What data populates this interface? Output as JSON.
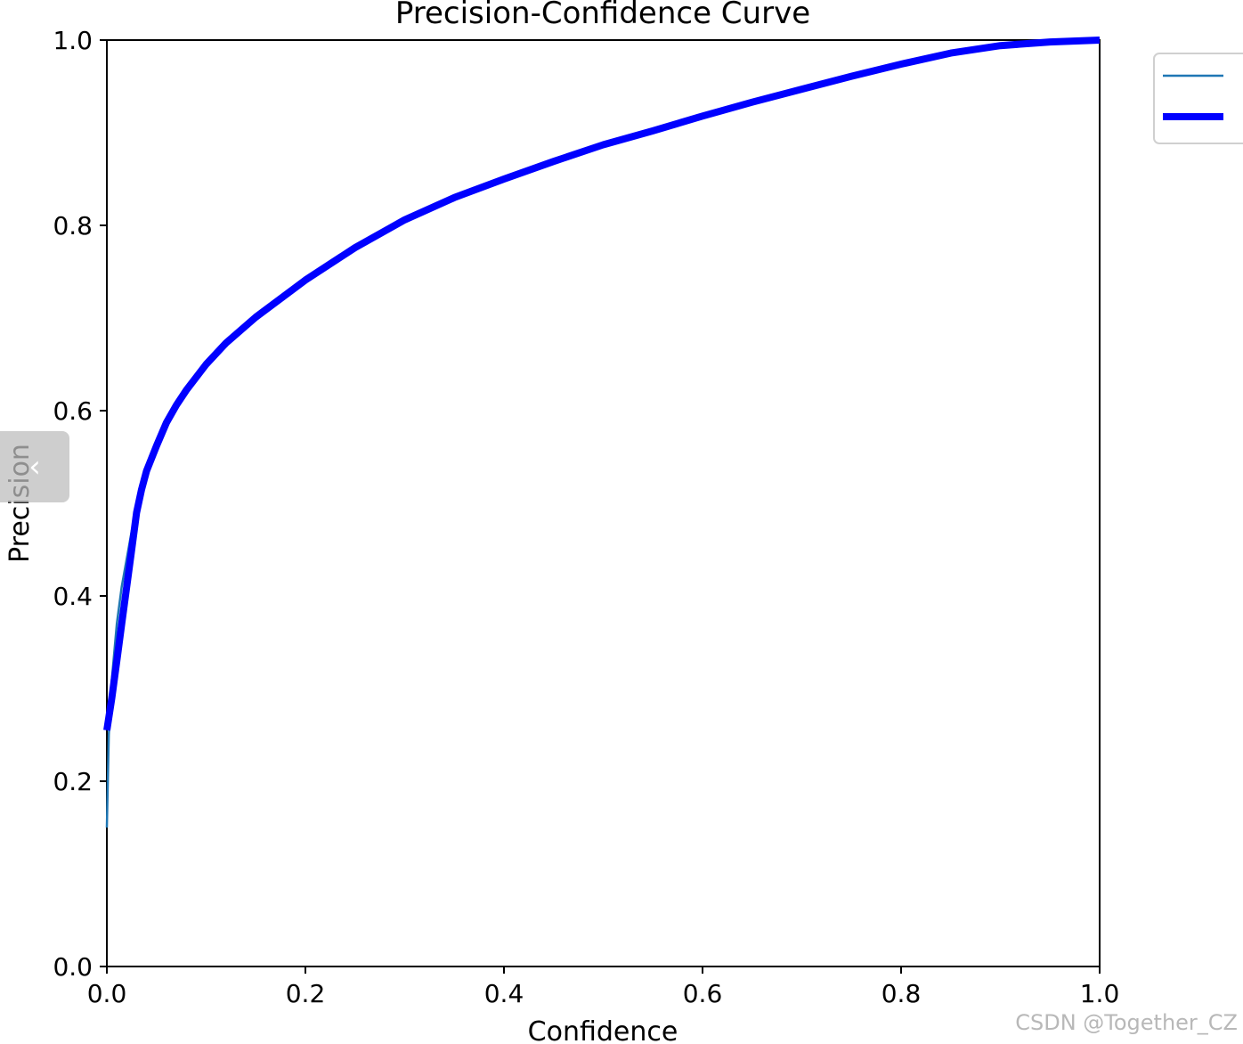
{
  "chart_data": {
    "type": "line",
    "title": "Precision-Confidence Curve",
    "xlabel": "Confidence",
    "ylabel": "Precision",
    "xlim": [
      0,
      1
    ],
    "ylim": [
      0,
      1
    ],
    "xticks": [
      "0.0",
      "0.2",
      "0.4",
      "0.6",
      "0.8",
      "1.0"
    ],
    "yticks": [
      "0.0",
      "0.2",
      "0.4",
      "0.6",
      "0.8",
      "1.0"
    ],
    "grid": false,
    "legend_placement": "outside upper right",
    "series": [
      {
        "color": "#1f77b4",
        "line": "thin",
        "x": [
          0.0,
          0.002,
          0.005,
          0.01,
          0.015,
          0.02,
          0.025,
          0.03,
          0.035,
          0.04,
          0.05,
          0.06,
          0.07,
          0.08,
          0.1,
          0.12,
          0.15,
          0.2,
          0.25,
          0.3,
          0.35,
          0.4,
          0.45,
          0.5,
          0.55,
          0.6,
          0.65,
          0.7,
          0.75,
          0.8,
          0.85,
          0.9,
          0.95,
          1.0
        ],
        "y": [
          0.15,
          0.25,
          0.31,
          0.37,
          0.41,
          0.44,
          0.47,
          0.49,
          0.51,
          0.53,
          0.56,
          0.585,
          0.605,
          0.62,
          0.648,
          0.672,
          0.7,
          0.74,
          0.775,
          0.805,
          0.83,
          0.85,
          0.87,
          0.888,
          0.903,
          0.918,
          0.933,
          0.946,
          0.96,
          0.973,
          0.985,
          0.994,
          0.998,
          1.0
        ]
      },
      {
        "color": "#0000ff",
        "line": "thick",
        "x": [
          0.0,
          0.005,
          0.01,
          0.015,
          0.02,
          0.025,
          0.03,
          0.035,
          0.04,
          0.05,
          0.06,
          0.07,
          0.08,
          0.1,
          0.12,
          0.15,
          0.2,
          0.25,
          0.3,
          0.35,
          0.4,
          0.45,
          0.5,
          0.55,
          0.6,
          0.65,
          0.7,
          0.75,
          0.8,
          0.85,
          0.9,
          0.95,
          1.0
        ],
        "y": [
          0.255,
          0.29,
          0.33,
          0.37,
          0.41,
          0.45,
          0.49,
          0.515,
          0.535,
          0.562,
          0.587,
          0.606,
          0.622,
          0.65,
          0.673,
          0.701,
          0.741,
          0.776,
          0.806,
          0.83,
          0.85,
          0.869,
          0.887,
          0.902,
          0.918,
          0.933,
          0.947,
          0.961,
          0.974,
          0.986,
          0.994,
          0.998,
          1.0
        ]
      }
    ]
  },
  "watermark": "CSDN @Together_CZ",
  "collapse_tab": {
    "icon": "chevron-left-icon",
    "glyph": "‹"
  }
}
